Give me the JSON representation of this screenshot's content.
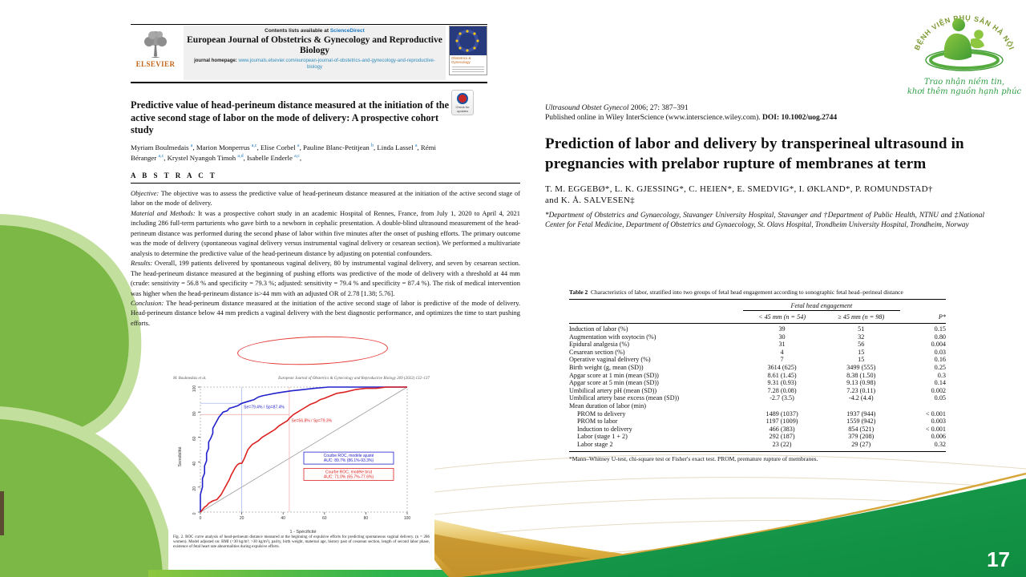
{
  "slide": {
    "page_number": "17"
  },
  "colors": {
    "accent_green": "#169b46",
    "leaf_green": "#7cb845",
    "gold": "#cf9f2e",
    "link_blue": "#1a78c2"
  },
  "logo": {
    "arc_text": "BỆNH VIỆN PHỤ SẢN HÀ NỘI",
    "tagline_line1": "Trao nhận niềm tin,",
    "tagline_line2": "khơi thêm nguồn hạnh phúc"
  },
  "left_paper": {
    "header": {
      "contents_line": "Contents lists available at",
      "sciencedirect": "ScienceDirect",
      "journal_title": "European Journal of Obstetrics & Gynecology and Reproductive Biology",
      "homepage_label": "journal homepage:",
      "homepage_url": "www.journals.elsevier.com/european-journal-of-obstetrics-and-gynecology-and-reproductive-biology",
      "elsevier": "ELSEVIER",
      "cover_title": "Obstetrics & Gynecology",
      "check_badge": "Check for updates"
    },
    "title": "Predictive value of head-perineum distance measured at the initiation of the active second stage of labor on the mode of delivery: A prospective cohort study",
    "authors": [
      {
        "name": "Myriam Boulmedais",
        "sup": "a"
      },
      {
        "name": "Marion Monperrus",
        "sup": "a,c"
      },
      {
        "name": "Elise Corbel",
        "sup": "a"
      },
      {
        "name": "Pauline Blanc-Petitjean",
        "sup": "b"
      },
      {
        "name": "Linda Lassel",
        "sup": "a"
      },
      {
        "name": "Rémi Béranger",
        "sup": "a,c"
      },
      {
        "name": "Krystel Nyangoh Timoh",
        "sup": "a,d"
      },
      {
        "name": "Isabelle Enderle",
        "sup": "a,c"
      }
    ],
    "abstract_heading": "A B S T R A C T",
    "abstract": [
      {
        "label": "Objective:",
        "text": "The objective was to assess the predictive value of head-perineum distance measured at the initiation of the active second stage of labor on the mode of delivery."
      },
      {
        "label": "Material and Methods:",
        "text": "It was a prospective cohort study in an academic Hospital of Rennes, France, from July 1, 2020 to April 4, 2021 including 286 full-term parturients who gave birth to a newborn in cephalic presentation. A double-blind ultrasound measurement of the head-perineum distance was performed during the second phase of labor within five minutes after the onset of pushing efforts. The primary outcome was the mode of delivery (spontaneous vaginal delivery versus instrumental vaginal delivery or cesarean section). We performed a multivariate analysis to determine the predictive value of the head-perineum distance by adjusting on potential confounders."
      },
      {
        "label": "Results:",
        "text": "Overall, 199 patients delivered by spontaneous vaginal delivery, 80 by instrumental vaginal delivery, and seven by cesarean section. The head-perineum distance measured at the beginning of pushing efforts was predictive of the mode of delivery with a threshold at 44 mm (crude: sensitivity = 56.8 % and specificity = 79.3 %; adjusted: sensitivity = 79.4 % and specificity = 87.4 %). The risk of medical intervention was higher when the head-perineum distance is>44 mm with an adjusted OR of 2.78 [1.38; 5.76]."
      },
      {
        "label": "Conclusion:",
        "text": "The head-perineum distance measured at the initiation of the active second stage of labor is predictive of the mode of delivery. Head-perineum distance below 44 mm predicts a vaginal delivery with the best diagnostic performance, and optimizes the time to start pushing efforts."
      }
    ]
  },
  "figure": {
    "running_left": "M. Boulmedais et al.",
    "running_right": "European Journal of Obstetrics & Gynecology and Reproductive Biology 269 (2022) 132–137",
    "ylabel": "Sensibilité",
    "xlabel": "1 - Spécificité",
    "ticks": [
      0,
      20,
      40,
      60,
      80,
      100
    ],
    "blue_annotation": "Se=79.4% / Sp=87.4%",
    "red_annotation": "Se=56.8% / Sp=79.3%",
    "legend_blue_line1": "Courbe ROC, modèle ajusté",
    "legend_blue_line2": "AUC: 89.7% (86.1%-93.3%)",
    "legend_red_line1": "Courbe ROC, modèle brut",
    "legend_red_line2": "AUC: 71.0% (65.7%-77.6%)",
    "caption": "Fig. 2. ROC curve analysis of head-perineum distance measured at the beginning of expulsive efforts for predicting spontaneous vaginal delivery. (n = 286 women). Model adjusted on: BMI (<30 kg/m²; >30 kg/m²), parity, birth weight, maternal age, history past of cesarean section, length of second labor phase, existence of fetal heart rate abnormalities during expulsive efforts.",
    "curves": {
      "blue": [
        [
          0,
          0
        ],
        [
          0,
          14
        ],
        [
          1,
          20
        ],
        [
          1,
          27
        ],
        [
          2,
          31
        ],
        [
          2,
          37
        ],
        [
          3,
          41
        ],
        [
          3,
          47
        ],
        [
          4,
          51
        ],
        [
          4,
          56
        ],
        [
          5,
          59
        ],
        [
          6,
          63
        ],
        [
          6,
          67
        ],
        [
          7,
          70
        ],
        [
          8,
          73
        ],
        [
          9,
          76
        ],
        [
          10,
          78
        ],
        [
          11,
          80
        ],
        [
          13,
          81
        ],
        [
          14,
          83
        ],
        [
          16,
          84
        ],
        [
          18,
          85
        ],
        [
          20,
          87
        ],
        [
          22,
          88
        ],
        [
          24,
          89
        ],
        [
          26,
          90
        ],
        [
          28,
          92
        ],
        [
          30,
          93
        ],
        [
          33,
          94
        ],
        [
          36,
          95
        ],
        [
          40,
          96
        ],
        [
          44,
          97
        ],
        [
          50,
          98
        ],
        [
          55,
          99
        ],
        [
          62,
          100
        ],
        [
          100,
          100
        ]
      ],
      "red": [
        [
          0,
          0
        ],
        [
          1,
          2
        ],
        [
          2,
          4
        ],
        [
          3,
          5
        ],
        [
          4,
          7
        ],
        [
          5,
          8
        ],
        [
          6,
          9
        ],
        [
          8,
          10
        ],
        [
          9,
          12
        ],
        [
          10,
          14
        ],
        [
          11,
          17
        ],
        [
          12,
          20
        ],
        [
          13,
          23
        ],
        [
          14,
          26
        ],
        [
          15,
          30
        ],
        [
          16,
          33
        ],
        [
          17,
          36
        ],
        [
          18,
          38
        ],
        [
          19,
          39
        ],
        [
          20,
          39
        ],
        [
          21,
          42
        ],
        [
          22,
          46
        ],
        [
          23,
          50
        ],
        [
          24,
          52
        ],
        [
          25,
          54
        ],
        [
          26,
          55
        ],
        [
          28,
          57
        ],
        [
          30,
          60
        ],
        [
          32,
          62
        ],
        [
          34,
          64
        ],
        [
          36,
          66
        ],
        [
          38,
          69
        ],
        [
          40,
          71
        ],
        [
          42,
          73
        ],
        [
          43,
          75
        ],
        [
          45,
          78
        ],
        [
          47,
          80
        ],
        [
          50,
          83
        ],
        [
          53,
          86
        ],
        [
          56,
          88
        ],
        [
          58,
          90
        ],
        [
          60,
          91
        ],
        [
          63,
          93
        ],
        [
          66,
          95
        ],
        [
          70,
          96
        ],
        [
          75,
          98
        ],
        [
          80,
          99
        ],
        [
          85,
          99
        ],
        [
          90,
          100
        ],
        [
          100,
          100
        ]
      ]
    },
    "refs": {
      "blue_v": 20,
      "blue_h": 87,
      "red_v": 43,
      "red_h": 78
    }
  },
  "right_paper": {
    "citation_journal": "Ultrasound Obstet Gynecol",
    "citation_rest": " 2006; 27: 387–391",
    "citation_line2": "Published online in Wiley InterScience (www.interscience.wiley.com). ",
    "citation_doi": "DOI: 10.1002/uog.2744",
    "title": "Prediction of labor and delivery by transperineal ultrasound in pregnancies with prelabor rupture of membranes at term",
    "authors_line1": "T. M. EGGEBØ*, L. K. GJESSING*, C. HEIEN*, E. SMEDVIG*, I. ØKLAND*, P. ROMUNDSTAD†",
    "authors_line2": "and K. Å. SALVESEN‡",
    "affiliations": "*Department of Obstetrics and Gynaecology, Stavanger University Hospital, Stavanger and †Department of Public Health, NTNU and ‡National Center for Fetal Medicine, Department of Obstetrics and Gynaecology, St. Olavs Hospital, Trondheim University Hospital, Trondheim, Norway",
    "table": {
      "caption_label": "Table 2",
      "caption_text": "Characteristics of labor, stratified into two groups of fetal head engagement according to sonographic fetal head–perineal distance",
      "group_header": "Fetal head engagement",
      "col1": "< 45 mm (n = 54)",
      "col2": "≥ 45 mm (n = 98)",
      "col3": "P*",
      "rows": [
        {
          "label": "Induction of labor (%)",
          "v1": "39",
          "v2": "51",
          "p": "0.15",
          "indent": false
        },
        {
          "label": "Augmentation with oxytocin (%)",
          "v1": "30",
          "v2": "32",
          "p": "0.80",
          "indent": false
        },
        {
          "label": "Epidural analgesia (%)",
          "v1": "31",
          "v2": "56",
          "p": "0.004",
          "indent": false
        },
        {
          "label": "Cesarean section (%)",
          "v1": "4",
          "v2": "15",
          "p": "0.03",
          "indent": false
        },
        {
          "label": "Operative vaginal delivery (%)",
          "v1": "7",
          "v2": "15",
          "p": "0.16",
          "indent": false
        },
        {
          "label": "Birth weight (g, mean (SD))",
          "v1": "3614 (625)",
          "v2": "3499 (555)",
          "p": "0.25",
          "indent": false
        },
        {
          "label": "Apgar score at 1 min (mean (SD))",
          "v1": "8.61 (1.45)",
          "v2": "8.38 (1.50)",
          "p": "0.3",
          "indent": false
        },
        {
          "label": "Apgar score at 5 min (mean (SD))",
          "v1": "9.31 (0.93)",
          "v2": "9.13 (0.98)",
          "p": "0.14",
          "indent": false
        },
        {
          "label": "Umbilical artery pH (mean (SD))",
          "v1": "7.28 (0.08)",
          "v2": "7.23 (0.11)",
          "p": "0.002",
          "indent": false
        },
        {
          "label": "Umbilical artery base excess (mean (SD))",
          "v1": "-2.7 (3.5)",
          "v2": "-4.2 (4.4)",
          "p": "0.05",
          "indent": false
        },
        {
          "label": "Mean duration of labor (min)",
          "v1": "",
          "v2": "",
          "p": "",
          "indent": false
        },
        {
          "label": "PROM to delivery",
          "v1": "1489 (1037)",
          "v2": "1937 (944)",
          "p": "< 0.001",
          "indent": true
        },
        {
          "label": "PROM to labor",
          "v1": "1197 (1009)",
          "v2": "1559 (942)",
          "p": "0.003",
          "indent": true
        },
        {
          "label": "Induction to delivery",
          "v1": "466 (383)",
          "v2": "854 (521)",
          "p": "< 0.001",
          "indent": true
        },
        {
          "label": "Labor (stage 1 + 2)",
          "v1": "292 (187)",
          "v2": "379 (208)",
          "p": "0.006",
          "indent": true
        },
        {
          "label": "Labor stage 2",
          "v1": "23 (22)",
          "v2": "29 (27)",
          "p": "0.32",
          "indent": true
        }
      ],
      "footnote": "*Mann–Whitney U-test, chi-square test or Fisher's exact test. PROM, premature rupture of membranes."
    }
  }
}
